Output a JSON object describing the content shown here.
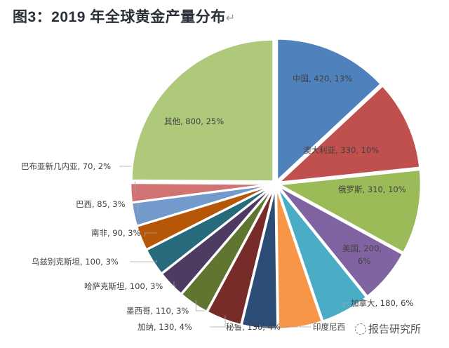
{
  "title": "图3：2019 年全球黄金产量分布",
  "return_mark": "↵",
  "watermark": {
    "text": "报告研究所",
    "icon": "wechat-icon"
  },
  "chart_data": {
    "type": "pie",
    "title": "图3：2019 年全球黄金产量分布",
    "start_angle": "12 o'clock",
    "direction": "clockwise",
    "exploded": true,
    "legend": "none",
    "slices": [
      {
        "label": "中国",
        "value": 420,
        "percent": "13%",
        "color": "#4f81bd",
        "text": "中国, 420, 13%"
      },
      {
        "label": "澳大利亚",
        "value": 330,
        "percent": "10%",
        "color": "#c0504d",
        "text": "澳大利亚, 330, 10%"
      },
      {
        "label": "俄罗斯",
        "value": 310,
        "percent": "10%",
        "color": "#9bbb59",
        "text": "俄罗斯, 310, 10%"
      },
      {
        "label": "美国",
        "value": 200,
        "percent": "6%",
        "color": "#8064a2",
        "text": "美国, 200,",
        "text2": "6%"
      },
      {
        "label": "加拿大",
        "value": 180,
        "percent": "6%",
        "color": "#4bacc6",
        "text": "加拿大, 180, 6%"
      },
      {
        "label": "印度尼西",
        "value": 160,
        "color": "#f79646",
        "text": "印度尼西"
      },
      {
        "label": "秘鲁",
        "value": 130,
        "percent": "4%",
        "color": "#2c4d75",
        "text": "秘鲁, 130, 4%"
      },
      {
        "label": "加纳",
        "value": 130,
        "percent": "4%",
        "color": "#772c2a",
        "text": "加纳, 130, 4%"
      },
      {
        "label": "墨西哥",
        "value": 110,
        "percent": "3%",
        "color": "#5f7530",
        "text": "墨西哥, 110, 3%"
      },
      {
        "label": "哈萨克斯坦",
        "value": 100,
        "percent": "3%",
        "color": "#4d3b62",
        "text": "哈萨克斯坦, 100, 3%"
      },
      {
        "label": "乌兹别克斯坦",
        "value": 100,
        "percent": "3%",
        "color": "#276a7c",
        "text": "乌兹别克斯坦, 100, 3%"
      },
      {
        "label": "南非",
        "value": 90,
        "percent": "3%",
        "color": "#b65708",
        "text": "南非, 90, 3%"
      },
      {
        "label": "巴西",
        "value": 85,
        "percent": "3%",
        "color": "#729aca",
        "text": "巴西, 85, 3%"
      },
      {
        "label": "巴布亚新几内亚",
        "value": 70,
        "percent": "2%",
        "color": "#d07372",
        "text": "巴布亚新几内亚, 70, 2%"
      },
      {
        "label": "其他",
        "value": 800,
        "percent": "25%",
        "color": "#afc97a",
        "text": "其他, 800, 25%"
      }
    ]
  }
}
